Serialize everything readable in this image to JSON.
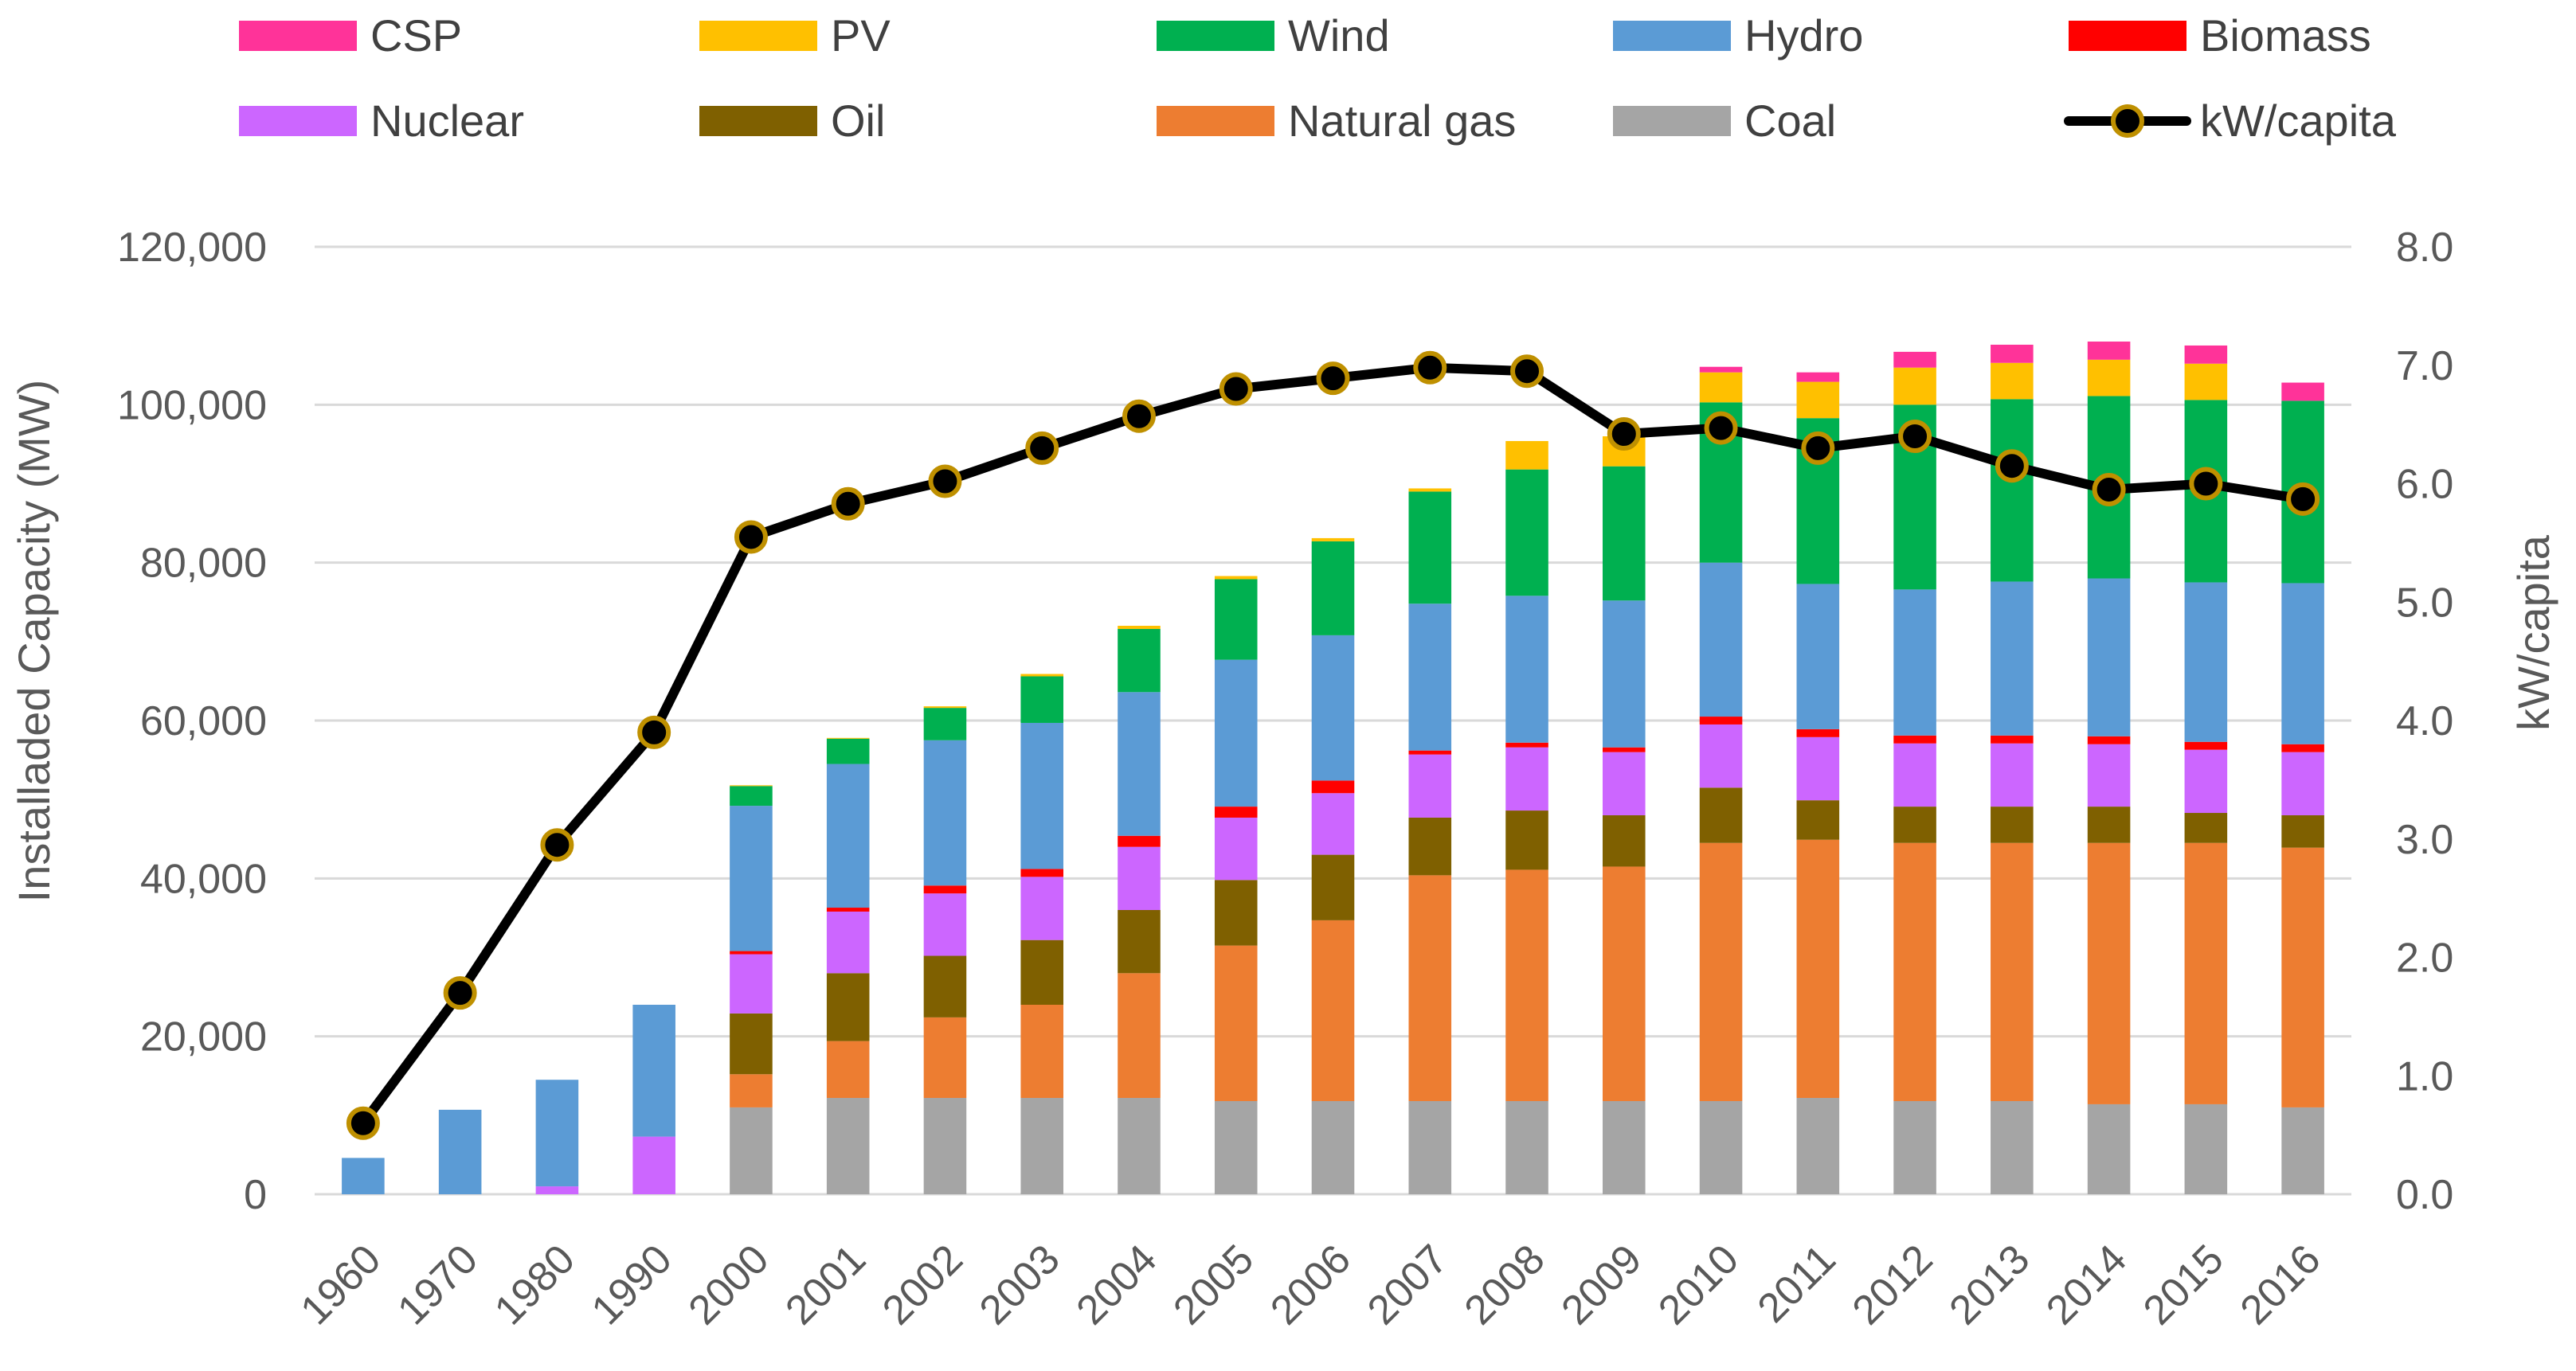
{
  "chart_data": {
    "type": "bar",
    "stacked": true,
    "title": "",
    "xlabel": "",
    "ylabel": "Installaded Capacity (MW)",
    "y2label": "kW/capita",
    "ylim": [
      0,
      120000
    ],
    "y2lim": [
      0,
      8
    ],
    "yticks": [
      0,
      20000,
      40000,
      60000,
      80000,
      100000,
      120000
    ],
    "ytick_labels": [
      "0",
      "20,000",
      "40,000",
      "60,000",
      "80,000",
      "100,000",
      "120,000"
    ],
    "y2ticks": [
      0,
      1,
      2,
      3,
      4,
      5,
      6,
      7,
      8
    ],
    "y2tick_labels": [
      "0.0",
      "1.0",
      "2.0",
      "3.0",
      "4.0",
      "5.0",
      "6.0",
      "7.0",
      "8.0"
    ],
    "grid": true,
    "legend_position": "top",
    "categories": [
      "1960",
      "1970",
      "1980",
      "1990",
      "2000",
      "2001",
      "2002",
      "2003",
      "2004",
      "2005",
      "2006",
      "2007",
      "2008",
      "2009",
      "2010",
      "2011",
      "2012",
      "2013",
      "2014",
      "2015",
      "2016"
    ],
    "series": [
      {
        "name": "Coal",
        "color": "#a5a5a5",
        "values": [
          0,
          0,
          0,
          0,
          11000,
          12200,
          12200,
          12200,
          12200,
          11800,
          11800,
          11800,
          11800,
          11800,
          11800,
          12200,
          11800,
          11800,
          11400,
          11400,
          11000
        ]
      },
      {
        "name": "Natural gas",
        "color": "#ed7d31",
        "values": [
          0,
          0,
          0,
          0,
          4200,
          7200,
          10200,
          11800,
          15800,
          19700,
          22900,
          28600,
          29300,
          29700,
          32700,
          32700,
          32700,
          32700,
          33100,
          33100,
          32900
        ]
      },
      {
        "name": "Oil",
        "color": "#7f6000",
        "values": [
          0,
          0,
          0,
          0,
          7700,
          8600,
          7800,
          8200,
          8000,
          8300,
          8300,
          7300,
          7500,
          6500,
          7000,
          5000,
          4600,
          4600,
          4600,
          3800,
          4100
        ]
      },
      {
        "name": "Nuclear",
        "color": "#cc66ff",
        "values": [
          0,
          0,
          1000,
          7300,
          7500,
          7800,
          7900,
          8000,
          8000,
          7900,
          7800,
          8000,
          8000,
          8000,
          8000,
          8000,
          8000,
          8000,
          7900,
          8000,
          8000
        ]
      },
      {
        "name": "Biomass",
        "color": "#ff0000",
        "values": [
          0,
          0,
          0,
          0,
          400,
          500,
          1000,
          1000,
          1400,
          1400,
          1600,
          500,
          600,
          600,
          1000,
          1000,
          1000,
          1000,
          1000,
          1000,
          1000
        ]
      },
      {
        "name": "Hydro",
        "color": "#5b9bd5",
        "values": [
          4600,
          10700,
          13500,
          16700,
          18400,
          18200,
          18400,
          18500,
          18200,
          18600,
          18400,
          18600,
          18600,
          18600,
          19500,
          18400,
          18500,
          19500,
          20000,
          20200,
          20400
        ]
      },
      {
        "name": "Wind",
        "color": "#00b050",
        "values": [
          0,
          0,
          0,
          0,
          2500,
          3200,
          4100,
          5900,
          8000,
          10200,
          11900,
          14200,
          16000,
          17000,
          20300,
          21000,
          23400,
          23100,
          23100,
          23100,
          23100
        ]
      },
      {
        "name": "PV",
        "color": "#ffc000",
        "values": [
          0,
          0,
          0,
          0,
          100,
          100,
          200,
          300,
          400,
          400,
          400,
          400,
          3600,
          3800,
          3800,
          4600,
          4700,
          4600,
          4600,
          4600,
          0
        ]
      },
      {
        "name": "CSP",
        "color": "#ff3399",
        "values": [
          0,
          0,
          0,
          0,
          0,
          0,
          0,
          0,
          0,
          0,
          0,
          0,
          0,
          0,
          700,
          1200,
          2000,
          2300,
          2300,
          2300,
          2300
        ]
      }
    ],
    "line_series": {
      "name": "kW/capita",
      "axis": "right",
      "color": "#000000",
      "marker_edge": "#bf9000",
      "values": [
        0.6,
        1.7,
        2.95,
        3.9,
        5.55,
        5.83,
        6.02,
        6.3,
        6.57,
        6.8,
        6.89,
        6.98,
        6.95,
        6.42,
        6.47,
        6.3,
        6.4,
        6.15,
        5.95,
        6.0,
        5.87
      ]
    },
    "legend": [
      {
        "name": "CSP",
        "color": "#ff3399",
        "kind": "bar"
      },
      {
        "name": "PV",
        "color": "#ffc000",
        "kind": "bar"
      },
      {
        "name": "Wind",
        "color": "#00b050",
        "kind": "bar"
      },
      {
        "name": "Hydro",
        "color": "#5b9bd5",
        "kind": "bar"
      },
      {
        "name": "Biomass",
        "color": "#ff0000",
        "kind": "bar"
      },
      {
        "name": "Nuclear",
        "color": "#cc66ff",
        "kind": "bar"
      },
      {
        "name": "Oil",
        "color": "#7f6000",
        "kind": "bar"
      },
      {
        "name": "Natural gas",
        "color": "#ed7d31",
        "kind": "bar"
      },
      {
        "name": "Coal",
        "color": "#a5a5a5",
        "kind": "bar"
      },
      {
        "name": "kW/capita",
        "color": "#000000",
        "kind": "line"
      }
    ]
  }
}
